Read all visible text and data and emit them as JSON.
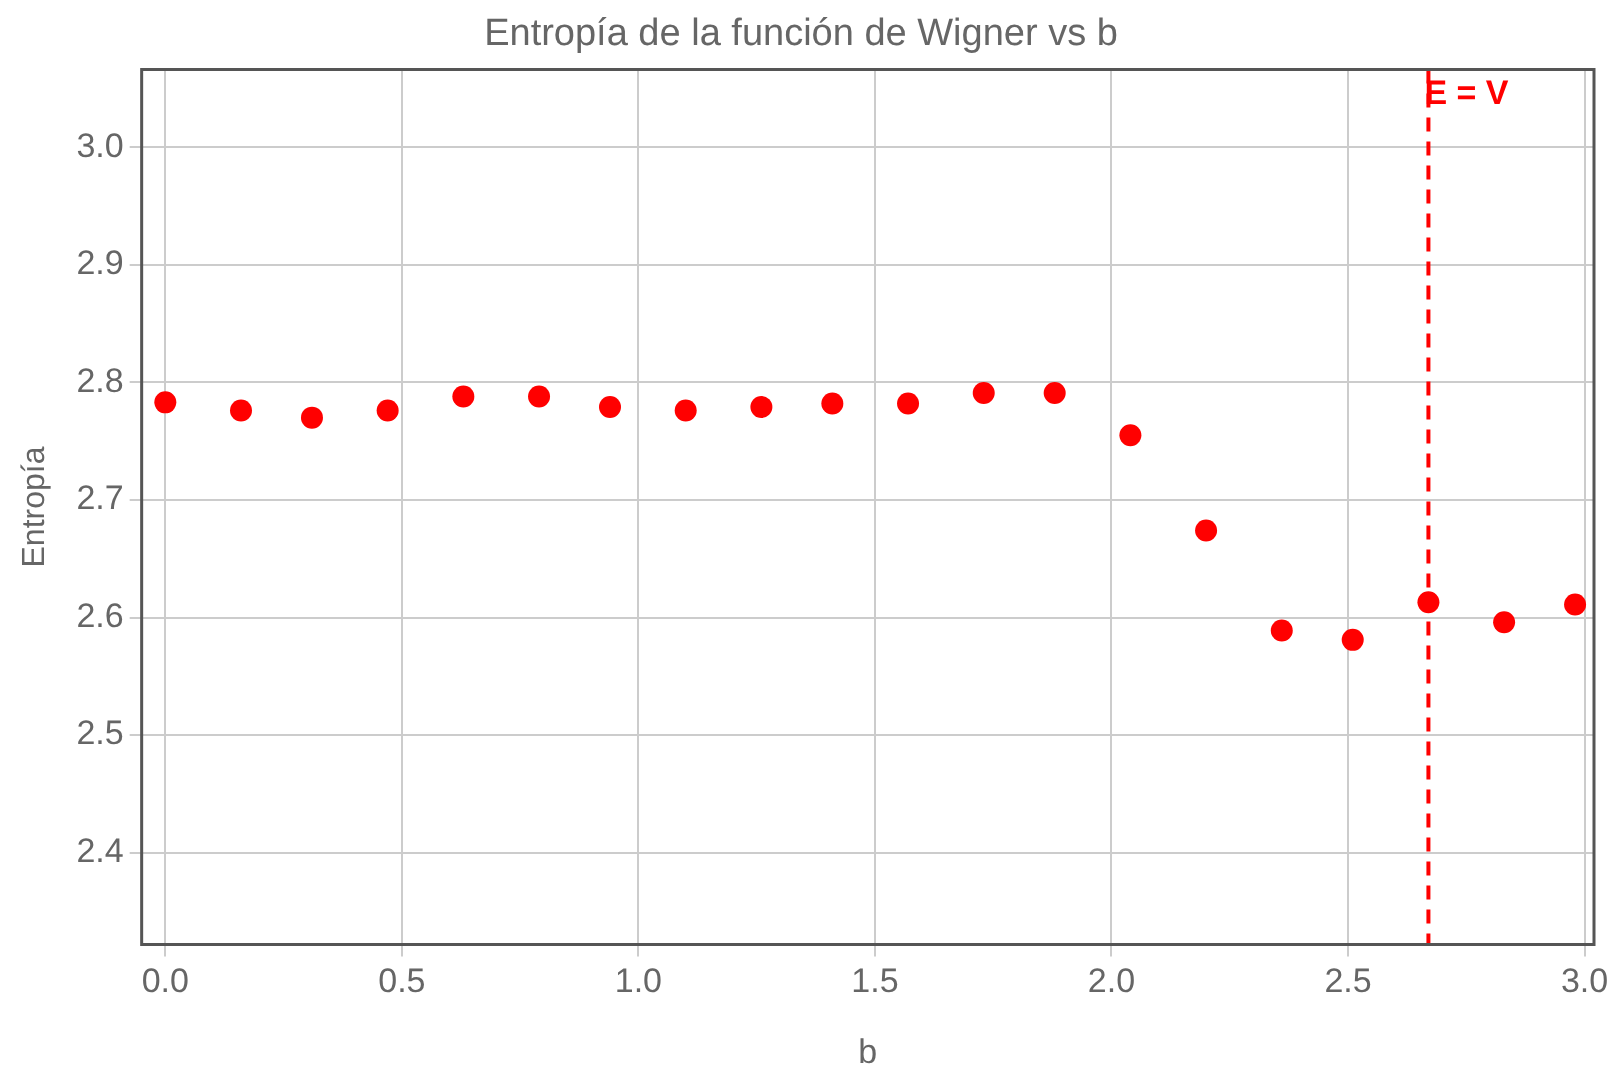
{
  "chart_data": {
    "type": "scatter",
    "title": "Entropía de la función de Wigner vs b",
    "xlabel": "b",
    "ylabel": "Entropía",
    "x": [
      0,
      0.16,
      0.31,
      0.47,
      0.63,
      0.79,
      0.94,
      1.1,
      1.26,
      1.41,
      1.57,
      1.73,
      1.88,
      2.04,
      2.2,
      2.36,
      2.51,
      2.67,
      2.83,
      2.98
    ],
    "series": [
      {
        "color": "#ff0000",
        "values": [
          2.783,
          2.776,
          2.77,
          2.776,
          2.788,
          2.788,
          2.779,
          2.776,
          2.779,
          2.782,
          2.782,
          2.791,
          2.791,
          2.755,
          2.674,
          2.589,
          2.581,
          2.613,
          2.596,
          2.611
        ]
      }
    ],
    "xlim": [
      -0.05,
      3.02
    ],
    "xticks": [
      {
        "value": 0,
        "label": "0.0"
      },
      0.5,
      {
        "value": 1,
        "label": "1.0"
      },
      1.5,
      {
        "value": 2,
        "label": "2.0"
      },
      2.5,
      {
        "value": 3,
        "label": "3.0"
      }
    ],
    "ylim": [
      2.322,
      3.066
    ],
    "yticks": [
      2.4,
      2.5,
      2.6,
      2.7,
      2.8,
      2.9,
      {
        "value": 3,
        "label": "3.0"
      }
    ],
    "ref_lines": [
      {
        "axis": "x",
        "value": 2.67,
        "label": "E = V",
        "color": "#ff0000",
        "line_style": "dashed"
      }
    ],
    "grid": true,
    "legend": false,
    "marker": "circle"
  }
}
